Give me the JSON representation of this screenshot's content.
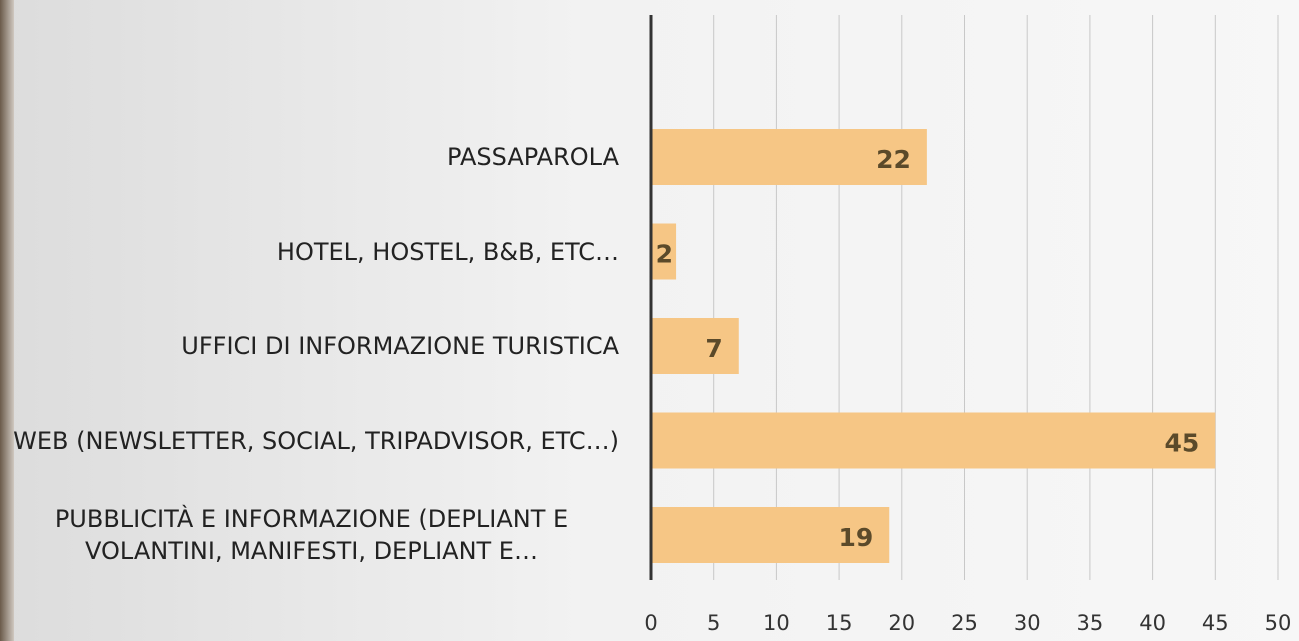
{
  "chart_data": {
    "type": "bar",
    "orientation": "horizontal",
    "categories": [
      "PASSAPAROLA",
      "HOTEL, HOSTEL, B&B, ETC…",
      "UFFICI DI INFORMAZIONE TURISTICA",
      "WEB (NEWSLETTER, SOCIAL, TRIPADVISOR, ETC…)",
      "PUBBLICITÀ E INFORMAZIONE (DEPLIANT E VOLANTINI, MANIFESTI, DEPLIANT E…"
    ],
    "values": [
      22,
      2,
      7,
      45,
      19
    ],
    "color": "#f6c685",
    "xlim": [
      0,
      50
    ],
    "xticks": [
      0,
      5,
      10,
      15,
      20,
      25,
      30,
      35,
      40,
      45,
      50
    ],
    "grid": true
  }
}
